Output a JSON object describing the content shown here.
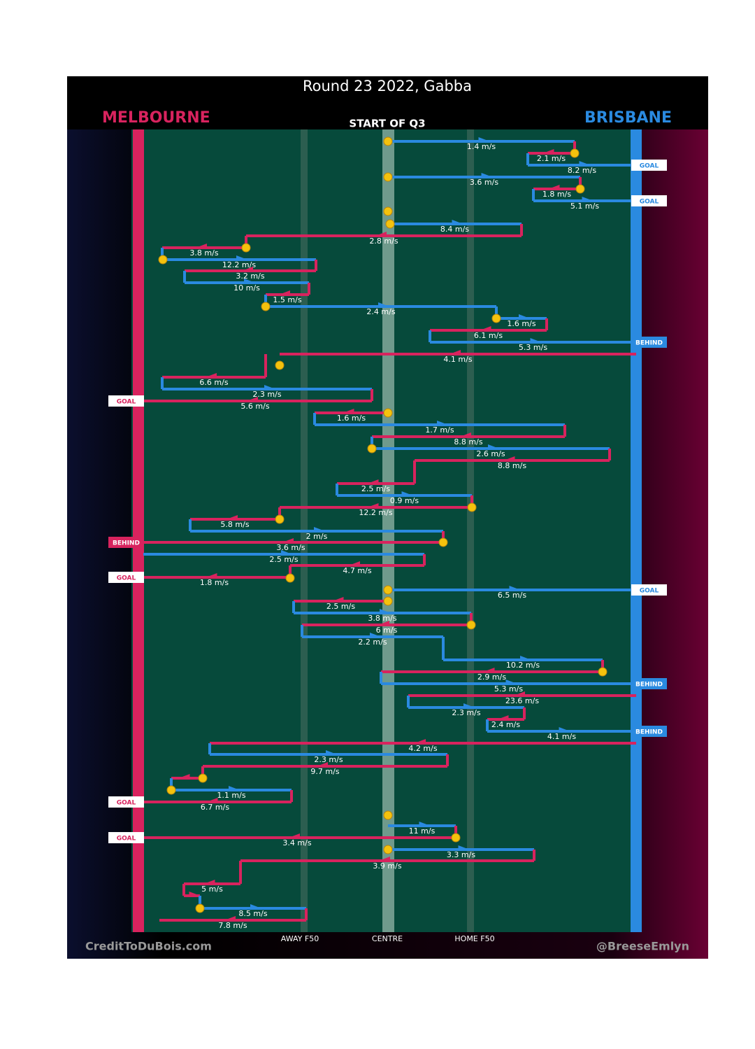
{
  "header": {
    "title": "Round 23 2022, Gabba",
    "subtitle": "START OF Q3"
  },
  "teams": {
    "home": {
      "name": "MELBOURNE",
      "color": "#d8235e"
    },
    "away": {
      "name": "BRISBANE",
      "color": "#2a8ae0"
    }
  },
  "zones": [
    "AWAY F50",
    "CENTRE",
    "HOME F50"
  ],
  "credits": [
    "CreditToDuBois.com",
    "@BreeseEmlyn"
  ],
  "segments": [
    {
      "speed": "1.4 m/s",
      "color": "#2a8ae0"
    },
    {
      "speed": "2.1 m/s",
      "color": "#d8235e"
    },
    {
      "speed": "8.2 m/s",
      "color": "#2a8ae0"
    },
    {
      "speed": "3.6 m/s",
      "color": "#2a8ae0"
    },
    {
      "speed": "1.8 m/s",
      "color": "#d8235e"
    },
    {
      "speed": "5.1 m/s",
      "color": "#2a8ae0"
    },
    {
      "speed": "8.4 m/s",
      "color": "#2a8ae0"
    },
    {
      "speed": "2.8 m/s",
      "color": "#d8235e"
    },
    {
      "speed": "3.8 m/s",
      "color": "#d8235e"
    },
    {
      "speed": "12.2 m/s",
      "color": "#2a8ae0"
    },
    {
      "speed": "3.2 m/s",
      "color": "#d8235e"
    },
    {
      "speed": "10 m/s",
      "color": "#2a8ae0"
    },
    {
      "speed": "1.5 m/s",
      "color": "#d8235e"
    },
    {
      "speed": "2.4 m/s",
      "color": "#2a8ae0"
    },
    {
      "speed": "1.6 m/s",
      "color": "#2a8ae0"
    },
    {
      "speed": "6.1 m/s",
      "color": "#d8235e"
    },
    {
      "speed": "5.3 m/s",
      "color": "#2a8ae0"
    },
    {
      "speed": "4.1 m/s",
      "color": "#d8235e"
    },
    {
      "speed": "6.6 m/s",
      "color": "#d8235e"
    },
    {
      "speed": "2.3 m/s",
      "color": "#2a8ae0"
    },
    {
      "speed": "5.6 m/s",
      "color": "#d8235e"
    },
    {
      "speed": "1.6 m/s",
      "color": "#d8235e"
    },
    {
      "speed": "1.7 m/s",
      "color": "#2a8ae0"
    },
    {
      "speed": "8.8 m/s",
      "color": "#d8235e"
    },
    {
      "speed": "2.6 m/s",
      "color": "#2a8ae0"
    },
    {
      "speed": "8.8 m/s",
      "color": "#d8235e"
    },
    {
      "speed": "2.5 m/s",
      "color": "#d8235e"
    },
    {
      "speed": "0.9 m/s",
      "color": "#2a8ae0"
    },
    {
      "speed": "12.2 m/s",
      "color": "#d8235e"
    },
    {
      "speed": "5.8 m/s",
      "color": "#d8235e"
    },
    {
      "speed": "2 m/s",
      "color": "#2a8ae0"
    },
    {
      "speed": "3.6 m/s",
      "color": "#d8235e"
    },
    {
      "speed": "2.5 m/s",
      "color": "#2a8ae0"
    },
    {
      "speed": "4.7 m/s",
      "color": "#d8235e"
    },
    {
      "speed": "1.8 m/s",
      "color": "#d8235e"
    },
    {
      "speed": "6.5 m/s",
      "color": "#2a8ae0"
    },
    {
      "speed": "2.5 m/s",
      "color": "#d8235e"
    },
    {
      "speed": "3.8 m/s",
      "color": "#2a8ae0"
    },
    {
      "speed": "6 m/s",
      "color": "#d8235e"
    },
    {
      "speed": "2.2 m/s",
      "color": "#2a8ae0"
    },
    {
      "speed": "10.2 m/s",
      "color": "#2a8ae0"
    },
    {
      "speed": "2.9 m/s",
      "color": "#d8235e"
    },
    {
      "speed": "5.3 m/s",
      "color": "#2a8ae0"
    },
    {
      "speed": "23.6 m/s",
      "color": "#d8235e"
    },
    {
      "speed": "2.3 m/s",
      "color": "#2a8ae0"
    },
    {
      "speed": "2.4 m/s",
      "color": "#d8235e"
    },
    {
      "speed": "4.1 m/s",
      "color": "#2a8ae0"
    },
    {
      "speed": "4.2 m/s",
      "color": "#d8235e"
    },
    {
      "speed": "2.3 m/s",
      "color": "#2a8ae0"
    },
    {
      "speed": "9.7 m/s",
      "color": "#d8235e"
    },
    {
      "speed": "1.1 m/s",
      "color": "#2a8ae0"
    },
    {
      "speed": "6.7 m/s",
      "color": "#d8235e"
    },
    {
      "speed": "11 m/s",
      "color": "#2a8ae0"
    },
    {
      "speed": "3.4 m/s",
      "color": "#d8235e"
    },
    {
      "speed": "3.3 m/s",
      "color": "#2a8ae0"
    },
    {
      "speed": "3.9 m/s",
      "color": "#d8235e"
    },
    {
      "speed": "5 m/s",
      "color": "#d8235e"
    },
    {
      "speed": "8.5 m/s",
      "color": "#2a8ae0"
    },
    {
      "speed": "7.8 m/s",
      "color": "#d8235e"
    }
  ],
  "outcomes": [
    {
      "label": "GOAL"
    },
    {
      "label": "GOAL"
    },
    {
      "label": "BEHIND"
    },
    {
      "label": "GOAL"
    },
    {
      "label": "BEHIND"
    },
    {
      "label": "GOAL"
    },
    {
      "label": "GOAL"
    },
    {
      "label": "BEHIND"
    },
    {
      "label": "BEHIND"
    },
    {
      "label": "GOAL"
    },
    {
      "label": "GOAL"
    }
  ]
}
